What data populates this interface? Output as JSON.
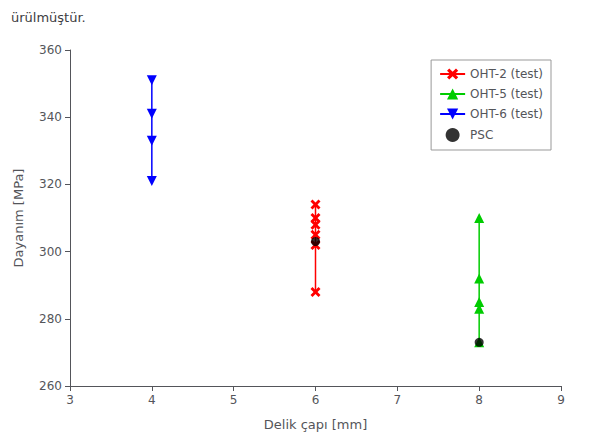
{
  "chart_data": {
    "type": "scatter",
    "title": "ürülmüştür.",
    "xlabel": "Delik çapı [mm]",
    "ylabel": "Dayanım [MPa]",
    "xlim": [
      3,
      9
    ],
    "ylim": [
      260,
      360
    ],
    "xticks": [
      3,
      4,
      5,
      6,
      7,
      8,
      9
    ],
    "yticks": [
      260,
      280,
      300,
      320,
      340,
      360
    ],
    "grid": false,
    "legend": "upper right",
    "series": [
      {
        "name": "OHT-2 (test)",
        "type": "line",
        "color": "#ff0000",
        "marker": "x",
        "x": [
          6,
          6,
          6,
          6,
          6,
          6
        ],
        "values": [
          288,
          302,
          305,
          308,
          310,
          314
        ]
      },
      {
        "name": "OHT-5 (test)",
        "type": "line",
        "color": "#00cc00",
        "marker": "triangle-up",
        "x": [
          8,
          8,
          8,
          8,
          8
        ],
        "values": [
          273,
          283,
          285,
          292,
          310
        ]
      },
      {
        "name": "OHT-6 (test)",
        "type": "line",
        "color": "#0000ff",
        "marker": "triangle-down",
        "x": [
          4,
          4,
          4,
          4
        ],
        "values": [
          321,
          333,
          341,
          351
        ]
      },
      {
        "name": "PSC",
        "type": "scatter",
        "color": "#000000",
        "marker": "circle",
        "x": [
          6,
          8
        ],
        "values": [
          303,
          273
        ]
      }
    ]
  }
}
